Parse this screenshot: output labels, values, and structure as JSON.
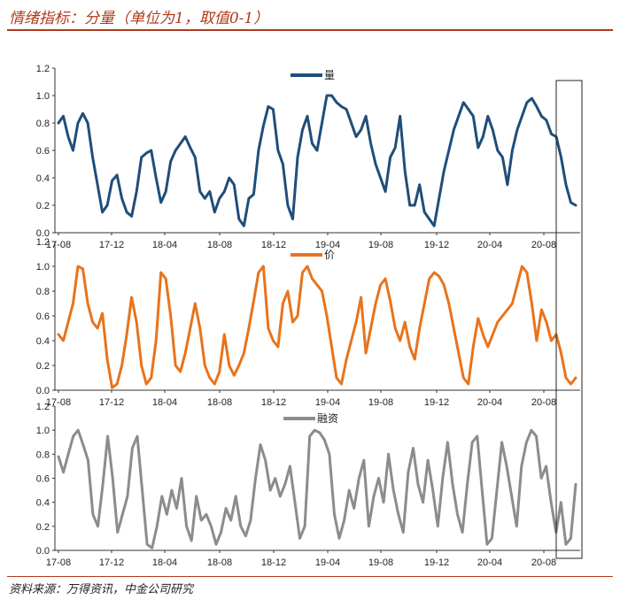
{
  "title": "情绪指标：分量（单位为1，取值0-1）",
  "source": "资料来源：万得资讯，中金公司研究",
  "chart_data": [
    {
      "type": "line",
      "legend": "量",
      "color": "#1f4e79",
      "ylim": [
        0,
        1.2
      ],
      "yticks": [
        "0.0",
        "0.2",
        "0.4",
        "0.6",
        "0.8",
        "1.0",
        "1.2"
      ],
      "xticks": [
        "17-08",
        "17-12",
        "18-04",
        "18-08",
        "18-12",
        "19-04",
        "19-08",
        "19-12",
        "20-04",
        "20-08"
      ],
      "values": [
        0.8,
        0.85,
        0.7,
        0.6,
        0.8,
        0.87,
        0.8,
        0.55,
        0.35,
        0.15,
        0.2,
        0.38,
        0.42,
        0.25,
        0.15,
        0.12,
        0.3,
        0.55,
        0.58,
        0.6,
        0.4,
        0.22,
        0.3,
        0.52,
        0.6,
        0.65,
        0.7,
        0.62,
        0.55,
        0.3,
        0.25,
        0.3,
        0.15,
        0.25,
        0.3,
        0.4,
        0.35,
        0.1,
        0.05,
        0.25,
        0.28,
        0.6,
        0.78,
        0.92,
        0.9,
        0.6,
        0.5,
        0.2,
        0.1,
        0.55,
        0.75,
        0.85,
        0.65,
        0.6,
        0.8,
        1.0,
        1.0,
        0.95,
        0.92,
        0.9,
        0.8,
        0.7,
        0.75,
        0.85,
        0.65,
        0.5,
        0.4,
        0.3,
        0.55,
        0.62,
        0.85,
        0.45,
        0.2,
        0.2,
        0.35,
        0.15,
        0.1,
        0.05,
        0.25,
        0.45,
        0.6,
        0.75,
        0.85,
        0.95,
        0.9,
        0.85,
        0.62,
        0.7,
        0.85,
        0.75,
        0.6,
        0.55,
        0.35,
        0.6,
        0.75,
        0.85,
        0.95,
        0.98,
        0.92,
        0.85,
        0.82,
        0.72,
        0.7,
        0.55,
        0.35,
        0.22,
        0.2
      ],
      "annotation": "highlight box around final months of series"
    },
    {
      "type": "line",
      "legend": "价",
      "color": "#e8731c",
      "ylim": [
        0,
        1.2
      ],
      "yticks": [
        "0.0",
        "0.2",
        "0.4",
        "0.6",
        "0.8",
        "1.0",
        "1.2"
      ],
      "xticks": [
        "17-08",
        "17-12",
        "18-04",
        "18-08",
        "18-12",
        "19-04",
        "19-08",
        "19-12",
        "20-04",
        "20-08"
      ],
      "values": [
        0.45,
        0.4,
        0.55,
        0.7,
        1.0,
        0.98,
        0.7,
        0.55,
        0.5,
        0.62,
        0.25,
        0.02,
        0.05,
        0.2,
        0.45,
        0.75,
        0.55,
        0.2,
        0.05,
        0.1,
        0.4,
        0.95,
        0.9,
        0.6,
        0.2,
        0.15,
        0.3,
        0.5,
        0.7,
        0.5,
        0.2,
        0.1,
        0.05,
        0.15,
        0.45,
        0.2,
        0.12,
        0.2,
        0.3,
        0.5,
        0.72,
        0.95,
        1.0,
        0.5,
        0.4,
        0.35,
        0.7,
        0.8,
        0.55,
        0.6,
        0.95,
        1.0,
        0.9,
        0.85,
        0.8,
        0.6,
        0.35,
        0.1,
        0.05,
        0.25,
        0.4,
        0.55,
        0.75,
        0.3,
        0.5,
        0.7,
        0.85,
        0.9,
        0.72,
        0.5,
        0.4,
        0.55,
        0.35,
        0.25,
        0.5,
        0.7,
        0.9,
        0.95,
        0.92,
        0.85,
        0.7,
        0.5,
        0.3,
        0.1,
        0.05,
        0.35,
        0.58,
        0.45,
        0.35,
        0.45,
        0.55,
        0.6,
        0.65,
        0.7,
        0.85,
        1.0,
        0.95,
        0.7,
        0.4,
        0.65,
        0.55,
        0.4,
        0.45,
        0.3,
        0.1,
        0.05,
        0.1
      ]
    },
    {
      "type": "line",
      "legend": "融资",
      "color": "#8c8c8c",
      "ylim": [
        0,
        1.2
      ],
      "yticks": [
        "0.0",
        "0.2",
        "0.4",
        "0.6",
        "0.8",
        "1.0",
        "1.2"
      ],
      "xticks": [
        "17-08",
        "17-12",
        "18-04",
        "18-08",
        "18-12",
        "19-04",
        "19-08",
        "19-12",
        "20-04",
        "20-08"
      ],
      "values": [
        0.78,
        0.65,
        0.8,
        0.95,
        1.0,
        0.88,
        0.75,
        0.3,
        0.2,
        0.55,
        0.95,
        0.6,
        0.15,
        0.3,
        0.45,
        0.85,
        0.95,
        0.5,
        0.05,
        0.02,
        0.2,
        0.45,
        0.3,
        0.5,
        0.35,
        0.6,
        0.2,
        0.08,
        0.45,
        0.25,
        0.3,
        0.2,
        0.05,
        0.15,
        0.35,
        0.25,
        0.45,
        0.2,
        0.12,
        0.25,
        0.6,
        0.88,
        0.75,
        0.5,
        0.6,
        0.45,
        0.55,
        0.7,
        0.4,
        0.1,
        0.2,
        0.95,
        1.0,
        0.98,
        0.92,
        0.8,
        0.3,
        0.1,
        0.25,
        0.5,
        0.35,
        0.6,
        0.75,
        0.2,
        0.45,
        0.6,
        0.4,
        0.8,
        0.5,
        0.3,
        0.15,
        0.65,
        0.85,
        0.55,
        0.4,
        0.75,
        0.5,
        0.2,
        0.6,
        0.9,
        0.55,
        0.3,
        0.15,
        0.55,
        0.9,
        0.95,
        0.5,
        0.05,
        0.1,
        0.5,
        0.9,
        0.7,
        0.45,
        0.2,
        0.7,
        0.9,
        1.0,
        0.95,
        0.6,
        0.7,
        0.4,
        0.15,
        0.4,
        0.05,
        0.1,
        0.55
      ]
    }
  ]
}
